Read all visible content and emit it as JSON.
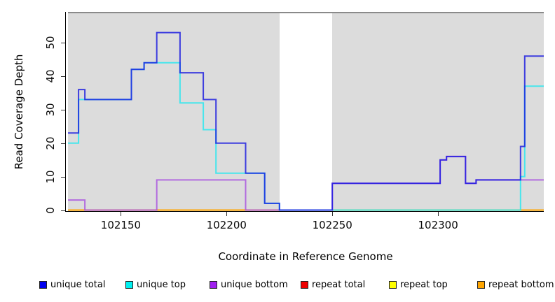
{
  "chart_data": {
    "type": "line",
    "subtype": "step-coverage",
    "title": "",
    "xlabel": "Coordinate in Reference Genome",
    "ylabel": "Read Coverage Depth",
    "xlim": [
      102125,
      102350
    ],
    "ylim": [
      0,
      59
    ],
    "x_ticks": [
      102150,
      102200,
      102250,
      102300
    ],
    "y_ticks": [
      0,
      10,
      20,
      30,
      40,
      50
    ],
    "grid": false,
    "legend_position": "bottom",
    "plot_background_color": "#DCDCDC",
    "covered_regions": [
      [
        102125,
        102225
      ],
      [
        102250,
        102350
      ]
    ],
    "uncovered_gap": [
      102225,
      102250
    ],
    "series": [
      {
        "name": "unique total",
        "color": "#1515E0",
        "legend_color": "#0000EE",
        "steps": [
          [
            102125,
            23
          ],
          [
            102130,
            36
          ],
          [
            102133,
            33
          ],
          [
            102155,
            42
          ],
          [
            102161,
            44
          ],
          [
            102167,
            53
          ],
          [
            102178,
            41
          ],
          [
            102189,
            33
          ],
          [
            102195,
            20
          ],
          [
            102209,
            11
          ],
          [
            102218,
            2
          ],
          [
            102225,
            0
          ],
          [
            102250,
            8
          ],
          [
            102301,
            15
          ],
          [
            102304,
            16
          ],
          [
            102313,
            8
          ],
          [
            102318,
            9
          ],
          [
            102339,
            19
          ],
          [
            102341,
            46
          ],
          [
            102350,
            46
          ]
        ]
      },
      {
        "name": "unique top",
        "color": "#22E8F0",
        "legend_color": "#00F0F0",
        "steps": [
          [
            102125,
            20
          ],
          [
            102130,
            33
          ],
          [
            102155,
            42
          ],
          [
            102161,
            44
          ],
          [
            102178,
            32
          ],
          [
            102189,
            24
          ],
          [
            102195,
            11
          ],
          [
            102218,
            2
          ],
          [
            102225,
            0
          ],
          [
            102339,
            10
          ],
          [
            102341,
            37
          ],
          [
            102350,
            37
          ]
        ]
      },
      {
        "name": "unique bottom",
        "color": "#A74FE0",
        "legend_color": "#A020F0",
        "steps": [
          [
            102125,
            3
          ],
          [
            102133,
            0
          ],
          [
            102167,
            9
          ],
          [
            102209,
            0
          ],
          [
            102250,
            8
          ],
          [
            102301,
            15
          ],
          [
            102304,
            16
          ],
          [
            102313,
            8
          ],
          [
            102318,
            9
          ],
          [
            102350,
            9
          ]
        ]
      },
      {
        "name": "repeat total",
        "color": "#E01010",
        "legend_color": "#EE0000",
        "steps": [
          [
            102125,
            0
          ],
          [
            102350,
            0
          ]
        ]
      },
      {
        "name": "repeat top",
        "color": "#FFFF00",
        "legend_color": "#FFFF00",
        "steps": [
          [
            102125,
            0
          ],
          [
            102350,
            0
          ]
        ]
      },
      {
        "name": "repeat bottom",
        "color": "#FF9900",
        "legend_color": "#FFA500",
        "steps": [
          [
            102125,
            0
          ],
          [
            102350,
            0
          ]
        ]
      }
    ],
    "draw_order": [
      3,
      4,
      5,
      2,
      1,
      0
    ]
  }
}
